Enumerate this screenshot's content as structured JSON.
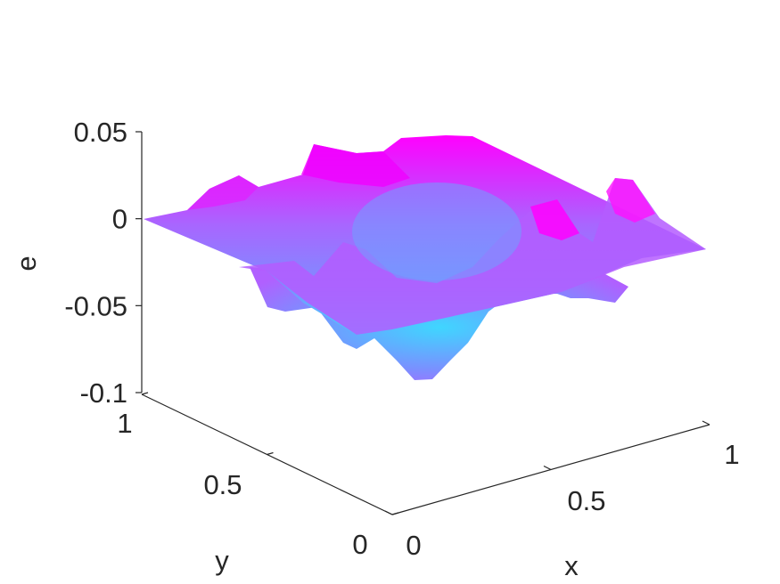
{
  "chart_data": {
    "type": "surface",
    "title": "",
    "xlabel": "x",
    "ylabel": "y",
    "zlabel": "e",
    "xlim": [
      0,
      1
    ],
    "ylim": [
      0,
      1
    ],
    "zlim": [
      -0.1,
      0.05
    ],
    "x_ticks": [
      0,
      0.5,
      1
    ],
    "y_ticks": [
      0,
      0.5,
      1
    ],
    "z_ticks": [
      -0.1,
      -0.05,
      0,
      0.05
    ],
    "x_tick_labels": [
      "0",
      "0.5",
      "1"
    ],
    "y_tick_labels": [
      "0",
      "0.5",
      "1"
    ],
    "z_tick_labels": [
      "-0.1",
      "-0.05",
      "0",
      "0.05"
    ],
    "grid": false,
    "colormap": [
      "#3fdcff",
      "#7a8cff",
      "#b65cff",
      "#ff00ff"
    ],
    "description_values": {
      "edge_zero": true,
      "z_min_approx": -0.09,
      "z_max_approx": 0.045
    }
  }
}
